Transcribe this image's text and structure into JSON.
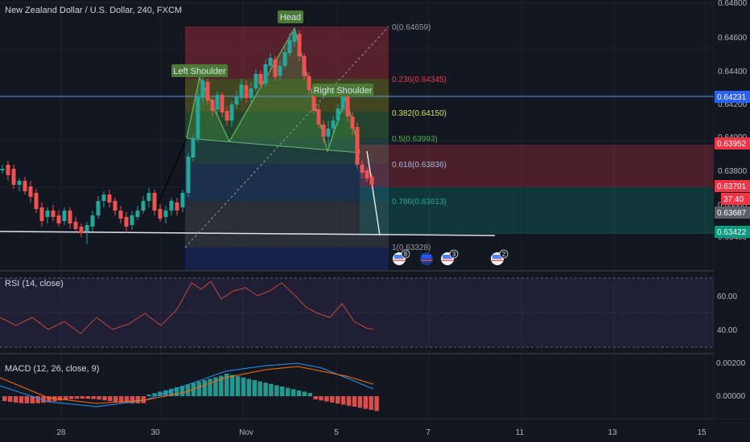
{
  "header": {
    "title": "New Zealand Dollar / U.S. Dollar, 240, FXCM"
  },
  "pattern_labels": {
    "head": "Head",
    "left_shoulder": "Left Shoulder",
    "right_shoulder": "Right Shoulder"
  },
  "fib_levels": [
    {
      "label": "0(0.64659)",
      "color": "#9598a1"
    },
    {
      "label": "0.236(0.64345)",
      "color": "#f23645"
    },
    {
      "label": "0.382(0.64150)",
      "color": "#c8e64a"
    },
    {
      "label": "0.5(0.63993)",
      "color": "#4caf50"
    },
    {
      "label": "0.618(0.63836)",
      "color": "#9fb7d8"
    },
    {
      "label": "0.786(0.63613)",
      "color": "#26a69a"
    },
    {
      "label": "1(0.63328)",
      "color": "#9598a1"
    }
  ],
  "price_axis": {
    "ticks": [
      "0.64800",
      "0.64600",
      "0.64400",
      "0.64200",
      "0.64000",
      "0.63800",
      "0.63600",
      "0.63400"
    ],
    "markers": [
      {
        "label": "0.64231",
        "color": "#2962ff",
        "text_color": "#ffffff"
      },
      {
        "label": "0.63952",
        "color": "#f23645",
        "text_color": "#ffffff"
      },
      {
        "label": "0.63701",
        "color": "#f23645",
        "text_color": "#ffffff"
      },
      {
        "label": "37:40",
        "color": "#f23645",
        "text_color": "#ffffff"
      },
      {
        "label": "0.63687",
        "color": "#5d606b",
        "text_color": "#ffffff"
      },
      {
        "label": "0.63422",
        "color": "#089981",
        "text_color": "#ffffff"
      }
    ]
  },
  "events": [
    {
      "icon": "us-flag-icon",
      "count": "8"
    },
    {
      "icon": "nz-flag-icon",
      "count": ""
    },
    {
      "icon": "us-flag-icon",
      "count": "3"
    },
    {
      "icon": "us-flag-icon",
      "count": "2"
    }
  ],
  "rsi": {
    "label": "RSI (14, close)",
    "ticks": [
      "60.00",
      "40.00"
    ]
  },
  "macd": {
    "label": "MACD (12, 26, close, 9)",
    "ticks": [
      "0.00200",
      "0.00000"
    ]
  },
  "time_axis": {
    "ticks": [
      "28",
      "30",
      "Nov",
      "5",
      "7",
      "11",
      "13",
      "15"
    ]
  },
  "colors": {
    "bg": "#131722",
    "up": "#26a69a",
    "down": "#ef5350",
    "grid": "#1e2230",
    "rsi": "#c2493d",
    "macd": "#2196f3",
    "signal": "#ff6d00"
  }
}
